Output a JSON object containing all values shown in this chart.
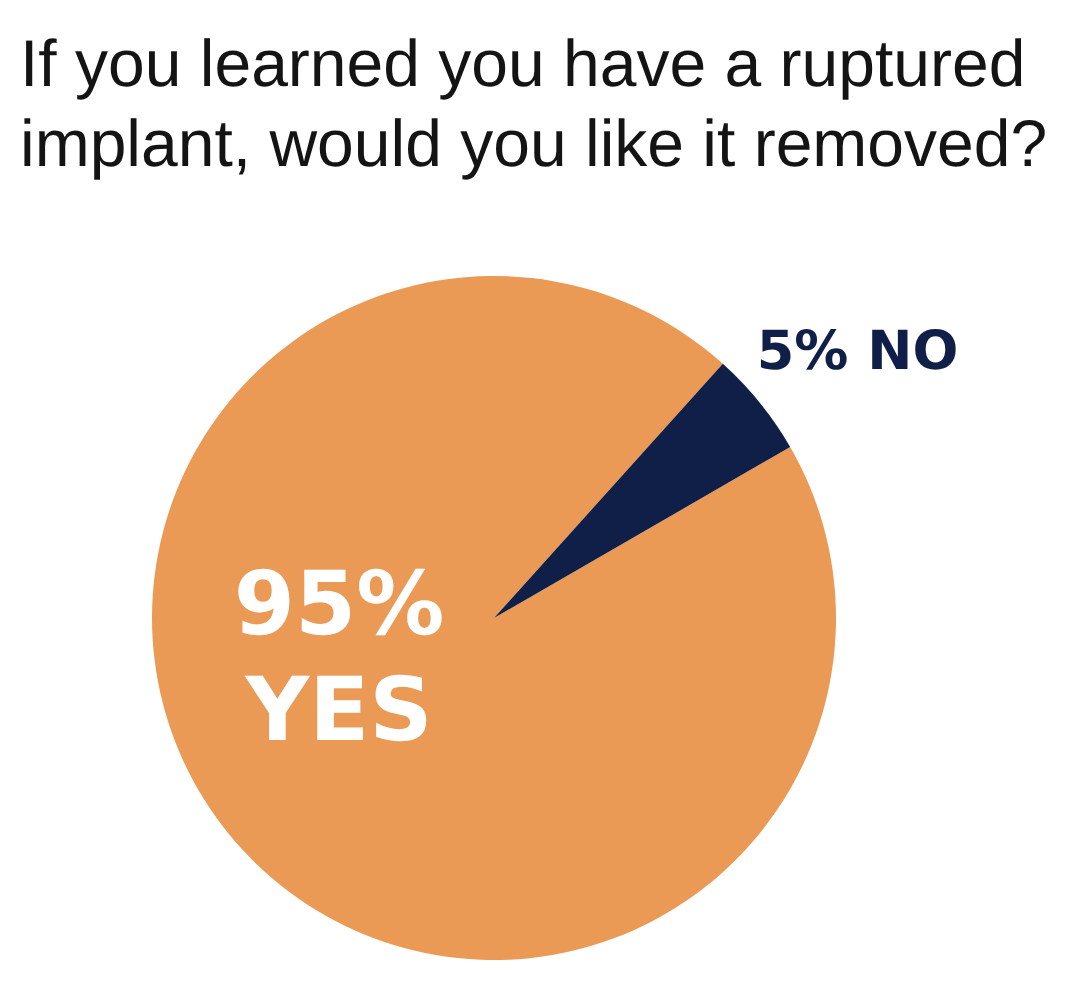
{
  "chart_data": {
    "type": "pie",
    "title": "If you learned you have a ruptured implant, would you like it removed?",
    "categories": [
      "YES",
      "NO"
    ],
    "values": [
      95,
      5
    ],
    "colors": [
      "#ea9a55",
      "#0f1f47"
    ],
    "value_labels": [
      "95%",
      "5%"
    ],
    "legend": false
  }
}
